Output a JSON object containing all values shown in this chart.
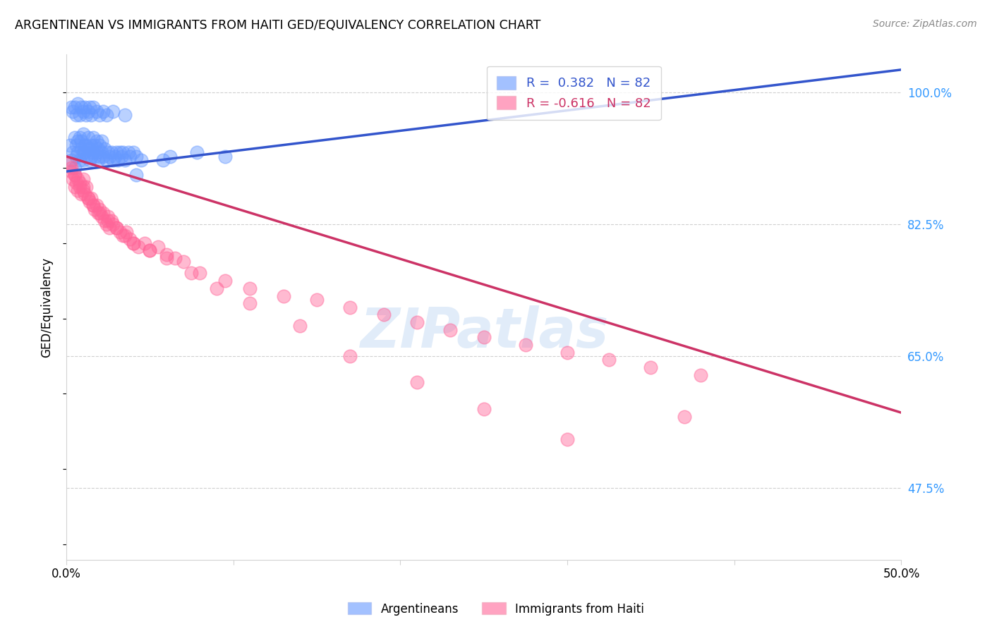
{
  "title": "ARGENTINEAN VS IMMIGRANTS FROM HAITI GED/EQUIVALENCY CORRELATION CHART",
  "source": "Source: ZipAtlas.com",
  "ylabel": "GED/Equivalency",
  "yticks": [
    100.0,
    82.5,
    65.0,
    47.5
  ],
  "ytick_labels": [
    "100.0%",
    "82.5%",
    "65.0%",
    "47.5%"
  ],
  "xlim": [
    0.0,
    50.0
  ],
  "ylim": [
    38.0,
    105.0
  ],
  "legend_label1": "Argentineans",
  "legend_label2": "Immigrants from Haiti",
  "blue_color": "#6699ff",
  "pink_color": "#ff6699",
  "blue_line_color": "#3355cc",
  "pink_line_color": "#cc3366",
  "watermark": "ZIPatlas",
  "blue_x": [
    0.2,
    0.3,
    0.4,
    0.5,
    0.5,
    0.6,
    0.6,
    0.7,
    0.7,
    0.8,
    0.8,
    0.9,
    0.9,
    1.0,
    1.0,
    1.0,
    1.1,
    1.1,
    1.2,
    1.2,
    1.3,
    1.3,
    1.4,
    1.4,
    1.5,
    1.5,
    1.6,
    1.6,
    1.7,
    1.7,
    1.8,
    1.8,
    1.9,
    1.9,
    2.0,
    2.0,
    2.1,
    2.1,
    2.2,
    2.3,
    2.4,
    2.5,
    2.6,
    2.7,
    2.8,
    2.9,
    3.0,
    3.1,
    3.2,
    3.3,
    3.4,
    3.5,
    3.7,
    3.8,
    4.0,
    4.2,
    4.5,
    6.2,
    7.8,
    9.5,
    0.3,
    0.4,
    0.5,
    0.6,
    0.7,
    0.8,
    0.9,
    1.0,
    1.1,
    1.2,
    1.3,
    1.4,
    1.5,
    1.6,
    1.8,
    2.0,
    2.2,
    2.4,
    2.8,
    3.5,
    4.2,
    5.8
  ],
  "blue_y": [
    93.0,
    91.0,
    92.0,
    90.0,
    94.0,
    91.5,
    93.0,
    92.0,
    93.5,
    91.0,
    94.0,
    92.5,
    93.5,
    91.0,
    92.0,
    94.5,
    92.0,
    93.0,
    91.5,
    93.0,
    92.5,
    94.0,
    91.0,
    92.5,
    91.5,
    93.0,
    92.0,
    94.0,
    91.5,
    93.0,
    92.0,
    93.5,
    91.0,
    92.5,
    91.5,
    93.0,
    92.0,
    93.5,
    91.5,
    92.5,
    91.0,
    92.0,
    91.5,
    92.0,
    91.0,
    91.5,
    92.0,
    91.0,
    92.0,
    91.5,
    92.0,
    91.0,
    92.0,
    91.5,
    92.0,
    91.5,
    91.0,
    91.5,
    92.0,
    91.5,
    98.0,
    97.5,
    98.0,
    97.0,
    98.5,
    97.0,
    98.0,
    97.5,
    98.0,
    97.0,
    97.5,
    98.0,
    97.0,
    98.0,
    97.5,
    97.0,
    97.5,
    97.0,
    97.5,
    97.0,
    89.0,
    91.0
  ],
  "pink_x": [
    0.2,
    0.3,
    0.4,
    0.5,
    0.5,
    0.6,
    0.7,
    0.7,
    0.8,
    0.9,
    1.0,
    1.0,
    1.1,
    1.2,
    1.3,
    1.4,
    1.5,
    1.6,
    1.7,
    1.8,
    1.9,
    2.0,
    2.1,
    2.2,
    2.3,
    2.4,
    2.5,
    2.6,
    2.7,
    2.8,
    3.0,
    3.2,
    3.4,
    3.6,
    3.8,
    4.0,
    4.3,
    4.7,
    5.0,
    5.5,
    6.0,
    6.5,
    7.0,
    8.0,
    9.5,
    11.0,
    13.0,
    15.0,
    17.0,
    19.0,
    21.0,
    23.0,
    25.0,
    27.5,
    30.0,
    32.5,
    35.0,
    38.0,
    0.3,
    0.5,
    0.8,
    1.0,
    1.3,
    1.6,
    2.0,
    2.5,
    3.0,
    3.5,
    4.0,
    5.0,
    6.0,
    7.5,
    9.0,
    11.0,
    14.0,
    17.0,
    21.0,
    25.0,
    30.0,
    37.0
  ],
  "pink_y": [
    90.5,
    89.5,
    88.5,
    89.0,
    87.5,
    88.0,
    87.0,
    88.5,
    87.5,
    86.5,
    87.5,
    88.5,
    86.5,
    87.5,
    86.0,
    85.5,
    86.0,
    85.0,
    84.5,
    85.0,
    84.0,
    84.5,
    83.5,
    84.0,
    83.0,
    82.5,
    83.5,
    82.0,
    83.0,
    82.5,
    82.0,
    81.5,
    81.0,
    81.5,
    80.5,
    80.0,
    79.5,
    80.0,
    79.0,
    79.5,
    78.5,
    78.0,
    77.5,
    76.0,
    75.0,
    74.0,
    73.0,
    72.5,
    71.5,
    70.5,
    69.5,
    68.5,
    67.5,
    66.5,
    65.5,
    64.5,
    63.5,
    62.5,
    90.0,
    89.0,
    88.0,
    87.0,
    86.0,
    85.0,
    84.0,
    83.0,
    82.0,
    81.0,
    80.0,
    79.0,
    78.0,
    76.0,
    74.0,
    72.0,
    69.0,
    65.0,
    61.5,
    58.0,
    54.0,
    57.0
  ],
  "blue_trend_x": [
    0.0,
    50.0
  ],
  "blue_trend_y": [
    89.5,
    103.0
  ],
  "pink_trend_x": [
    0.0,
    50.0
  ],
  "pink_trend_y": [
    91.5,
    57.5
  ]
}
